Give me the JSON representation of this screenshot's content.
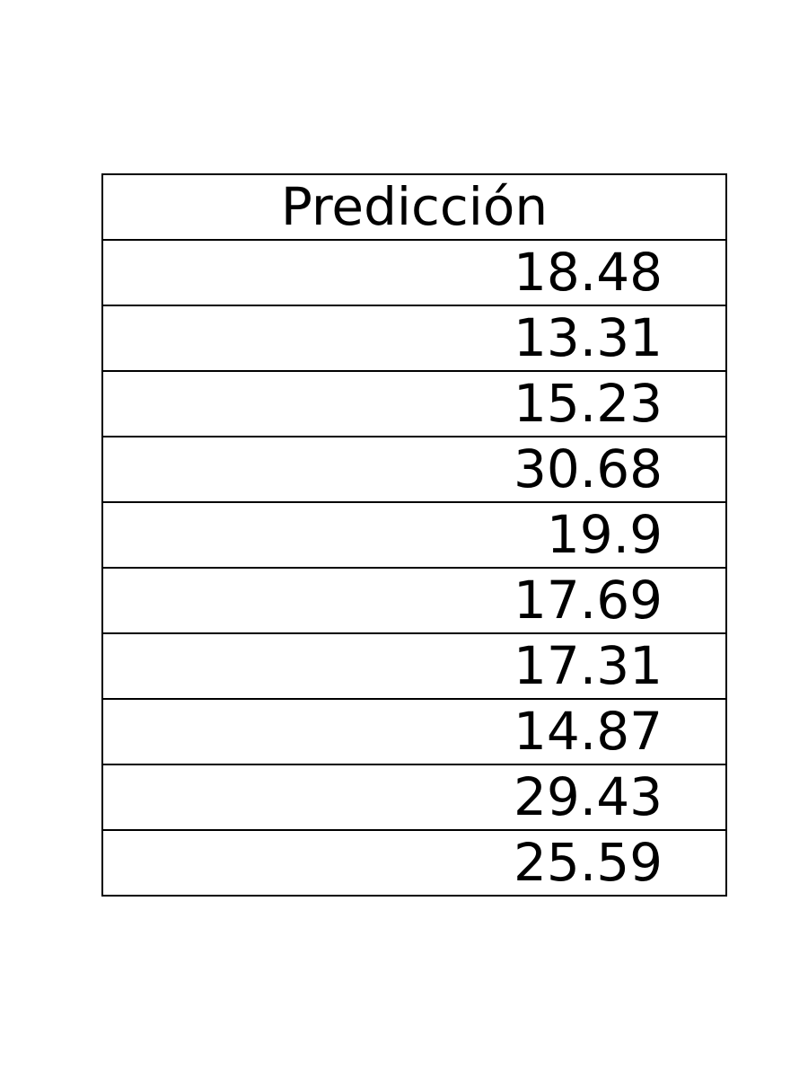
{
  "chart_data": {
    "type": "table",
    "columns": [
      "Predicción"
    ],
    "rows": [
      [
        "18.48"
      ],
      [
        "13.31"
      ],
      [
        "15.23"
      ],
      [
        "30.68"
      ],
      [
        "19.9"
      ],
      [
        "17.69"
      ],
      [
        "17.31"
      ],
      [
        "14.87"
      ],
      [
        "29.43"
      ],
      [
        "25.59"
      ]
    ],
    "values": [
      18.48,
      13.31,
      15.23,
      30.68,
      19.9,
      17.69,
      17.31,
      14.87,
      29.43,
      25.59
    ]
  }
}
